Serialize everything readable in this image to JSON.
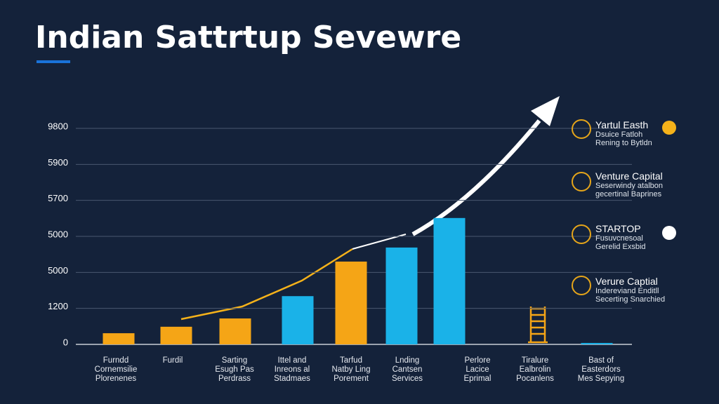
{
  "chart_data": {
    "type": "bar",
    "title": "Indian Sattrtup Sevewre",
    "y_axis_labels": [
      "0",
      "1200",
      "5000",
      "5000",
      "5700",
      "5900",
      "9800"
    ],
    "ylim": [
      0,
      6
    ],
    "categories": [
      "Furndd\nCornemsilie\nPlorenenes",
      "Furdil",
      "Sarting\nEsugh Pas\nPerdrass",
      "Ittel and\nInreons al\nStadmaes",
      "Tarfud\nNatby Ling\nPorement",
      "Lnding\nCantsen\nServices",
      "Perlore\nLacice\nEprimal",
      "Tiralure\nEalbrolin\nPocanlens",
      "Bast of\nEasterdors\nMes Sepying"
    ],
    "values": [
      0.31,
      0.49,
      0.72,
      1.34,
      2.3,
      2.69,
      3.51,
      null,
      0.04
    ],
    "colors": [
      "#f5a516",
      "#f5a516",
      "#f5a516",
      "#1ab2e8",
      "#f5a516",
      "#1ab2e8",
      "#1ab2e8",
      "#f5a516",
      "#1ab2e8"
    ],
    "grid": true,
    "legend_items": [
      {
        "title": "Yartul Easth",
        "lines": [
          "Dsuice Fatloh",
          "Rening to Bytldn"
        ]
      },
      {
        "title": "Venture Capital",
        "lines": [
          "Seserwindy atalbon",
          "gecertinal Baprines"
        ]
      },
      {
        "title": "STARTOP",
        "lines": [
          "Fusuvcnesoal",
          "Gerelid Exsbid"
        ]
      },
      {
        "title": "Verure Captial",
        "lines": [
          "Indereviand Enditll",
          "Secerting Snarchied"
        ]
      }
    ]
  }
}
